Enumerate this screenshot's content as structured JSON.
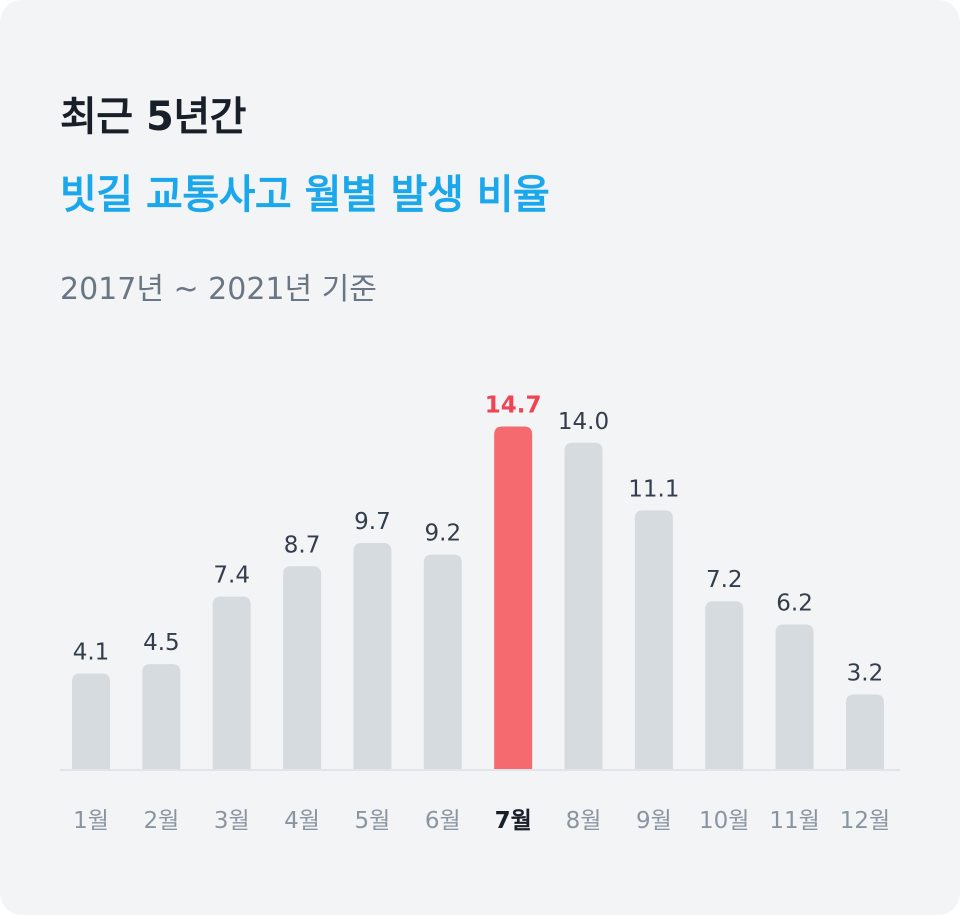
{
  "header": {
    "title_line1": "최근 5년간",
    "title_line2": "빗길 교통사고 월별 발생 비율",
    "subtitle": "2017년 ~ 2021년 기준"
  },
  "colors": {
    "background": "#f2f4f6",
    "bar": "#d6dbe0",
    "highlight_bar": "#f56a6f",
    "highlight_label": "#f04452",
    "accent_title": "#1aa7ec",
    "axis": "#e1e5ea"
  },
  "chart_data": {
    "type": "bar",
    "categories": [
      "1월",
      "2월",
      "3월",
      "4월",
      "5월",
      "6월",
      "7월",
      "8월",
      "9월",
      "10월",
      "11월",
      "12월"
    ],
    "values": [
      4.1,
      4.5,
      7.4,
      8.7,
      9.7,
      9.2,
      14.7,
      14.0,
      11.1,
      7.2,
      6.2,
      3.2
    ],
    "value_labels": [
      "4.1",
      "4.5",
      "7.4",
      "8.7",
      "9.7",
      "9.2",
      "14.7",
      "14.0",
      "11.1",
      "7.2",
      "6.2",
      "3.2"
    ],
    "highlight_category": "7월",
    "title": "",
    "xlabel": "",
    "ylabel": "",
    "grid": false,
    "legend": "none"
  }
}
